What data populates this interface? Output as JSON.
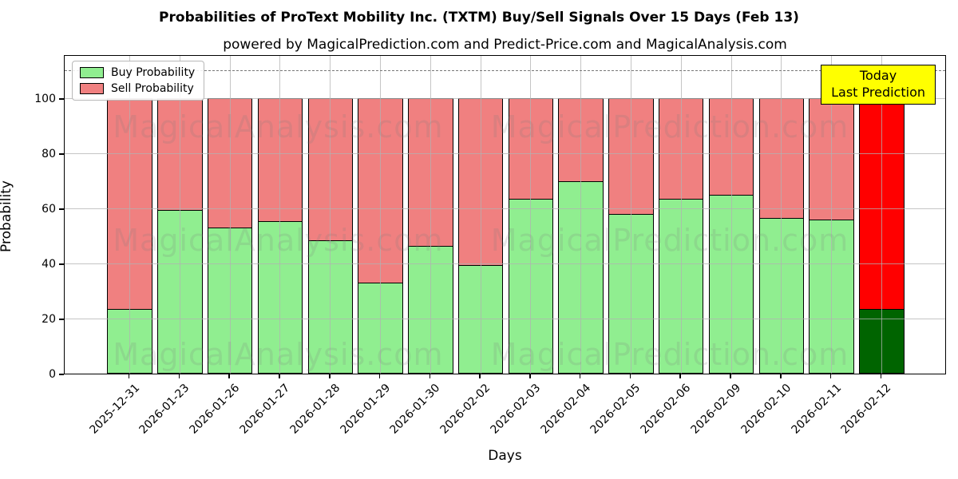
{
  "chart_data": {
    "type": "bar",
    "stacked": true,
    "title": "Probabilities of ProText Mobility Inc. (TXTM) Buy/Sell Signals Over 15 Days (Feb 13)",
    "subtitle": "powered by MagicalPrediction.com and Predict-Price.com and MagicalAnalysis.com",
    "xlabel": "Days",
    "ylabel": "Probability",
    "ylim": [
      0,
      116
    ],
    "yticks": [
      0,
      20,
      40,
      60,
      80,
      100
    ],
    "dashed_line_y": 110,
    "grid": true,
    "legend_position": "upper left",
    "categories": [
      "2025-12-31",
      "2026-01-23",
      "2026-01-26",
      "2026-01-27",
      "2026-01-28",
      "2026-01-29",
      "2026-01-30",
      "2026-02-02",
      "2026-02-03",
      "2026-02-04",
      "2026-02-05",
      "2026-02-06",
      "2026-02-09",
      "2026-02-10",
      "2026-02-11",
      "2026-02-12"
    ],
    "series": [
      {
        "name": "Buy Probability",
        "color": "#90ee90",
        "values": [
          23.5,
          59.5,
          53.0,
          55.5,
          48.5,
          33.0,
          46.5,
          39.5,
          63.5,
          70.0,
          58.0,
          63.5,
          65.0,
          56.5,
          56.0,
          23.5
        ]
      },
      {
        "name": "Sell Probability",
        "color": "#f08080",
        "values": [
          76.5,
          40.5,
          47.0,
          44.5,
          51.5,
          67.0,
          53.5,
          60.5,
          36.5,
          30.0,
          42.0,
          36.5,
          35.0,
          43.5,
          44.0,
          76.5
        ]
      }
    ],
    "last_bar_colors": {
      "buy": "#006400",
      "sell": "#ff0000"
    },
    "bar_edge_color": "#000000"
  },
  "annotation_box": {
    "line1": "Today",
    "line2": "Last Prediction",
    "bg_color": "#ffff00"
  },
  "watermarks": {
    "left_text": "MagicalAnalysis.com",
    "right_text": "MagicalPrediction.com"
  }
}
